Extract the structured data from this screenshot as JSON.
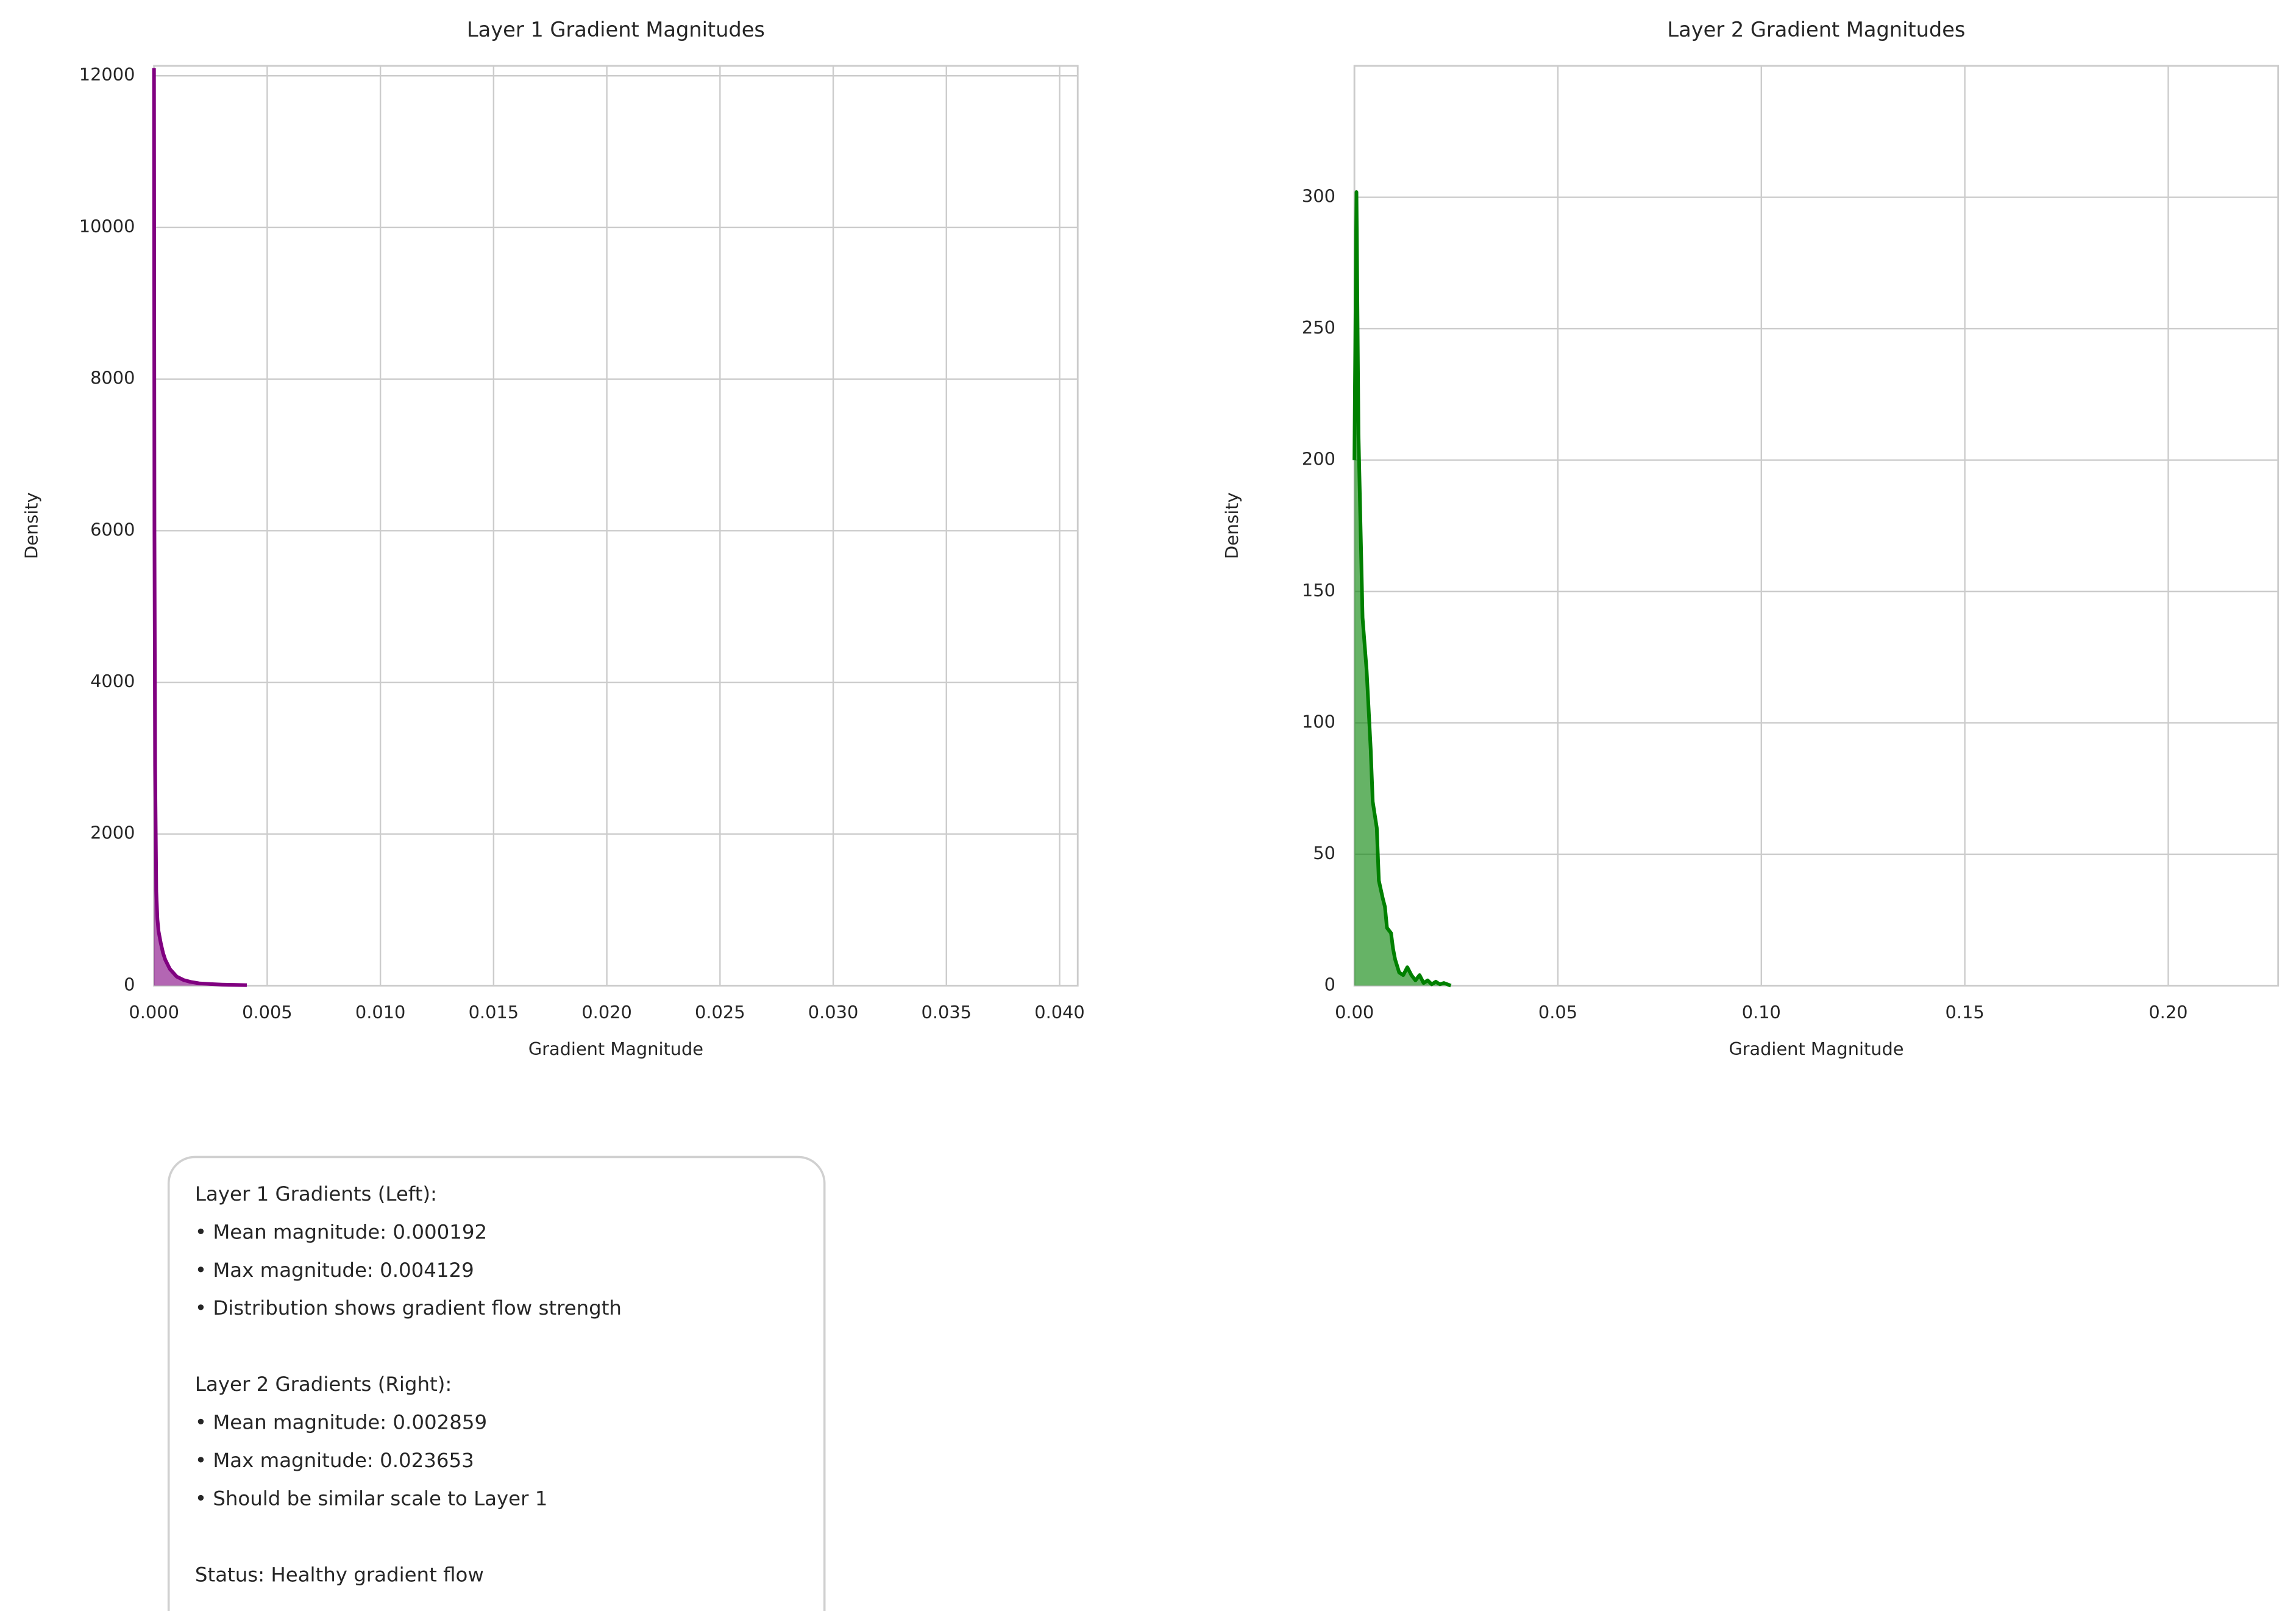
{
  "chart_data": [
    {
      "type": "area",
      "title": "Layer 1 Gradient Magnitudes",
      "xlabel": "Gradient Magnitude",
      "ylabel": "Density",
      "color": "#800080",
      "x": [
        0,
        2e-05,
        5e-05,
        0.0001,
        0.00015,
        0.0002,
        0.0003,
        0.0004,
        0.0005,
        0.0007,
        0.001,
        0.0013,
        0.0016,
        0.002,
        0.0025,
        0.003,
        0.0035,
        0.0041
      ],
      "values": [
        12100,
        6000,
        2900,
        1250,
        880,
        720,
        560,
        430,
        340,
        220,
        120,
        75,
        50,
        30,
        20,
        14,
        10,
        6
      ],
      "xlim": [
        0,
        0.0408
      ],
      "ylim": [
        0,
        12130
      ],
      "xticks": [
        {
          "value": 0,
          "label": "0.000"
        },
        {
          "value": 0.005,
          "label": "0.005"
        },
        {
          "value": 0.01,
          "label": "0.010"
        },
        {
          "value": 0.015,
          "label": "0.015"
        },
        {
          "value": 0.02,
          "label": "0.020"
        },
        {
          "value": 0.025,
          "label": "0.025"
        },
        {
          "value": 0.03,
          "label": "0.030"
        },
        {
          "value": 0.035,
          "label": "0.035"
        },
        {
          "value": 0.04,
          "label": "0.040"
        }
      ],
      "yticks": [
        0,
        2000,
        4000,
        6000,
        8000,
        10000,
        12000
      ],
      "grid": true
    },
    {
      "type": "area",
      "title": "Layer 2 Gradient Magnitudes",
      "xlabel": "Gradient Magnitude",
      "ylabel": "Density",
      "color": "#008000",
      "x": [
        0,
        0.0005,
        0.001,
        0.002,
        0.003,
        0.004,
        0.0045,
        0.005,
        0.0055,
        0.006,
        0.007,
        0.0075,
        0.008,
        0.009,
        0.0095,
        0.01,
        0.011,
        0.012,
        0.013,
        0.014,
        0.015,
        0.016,
        0.017,
        0.018,
        0.019,
        0.02,
        0.021,
        0.022,
        0.0237
      ],
      "values": [
        200,
        302,
        210,
        140,
        120,
        90,
        70,
        65,
        60,
        40,
        33,
        30,
        22,
        20,
        14,
        10,
        5,
        4,
        7,
        4,
        2,
        4,
        1,
        2,
        0.5,
        1.5,
        0.5,
        1,
        0
      ],
      "xlim": [
        0,
        0.227
      ],
      "ylim": [
        0,
        350
      ],
      "xticks": [
        {
          "value": 0,
          "label": "0.00"
        },
        {
          "value": 0.05,
          "label": "0.05"
        },
        {
          "value": 0.1,
          "label": "0.10"
        },
        {
          "value": 0.15,
          "label": "0.15"
        },
        {
          "value": 0.2,
          "label": "0.20"
        }
      ],
      "yticks": [
        0,
        50,
        100,
        150,
        200,
        250,
        300
      ],
      "grid": true
    }
  ],
  "text_box": {
    "paragraphs": [
      [
        "Layer 1 Gradients (Left):",
        "• Mean magnitude: 0.000192",
        "• Max magnitude: 0.004129",
        "• Distribution shows gradient flow strength"
      ],
      [
        "Layer 2 Gradients (Right):",
        "• Mean magnitude: 0.002859",
        "• Max magnitude: 0.023653",
        "• Should be similar scale to Layer 1"
      ],
      [
        "Status: Healthy gradient flow"
      ]
    ]
  }
}
